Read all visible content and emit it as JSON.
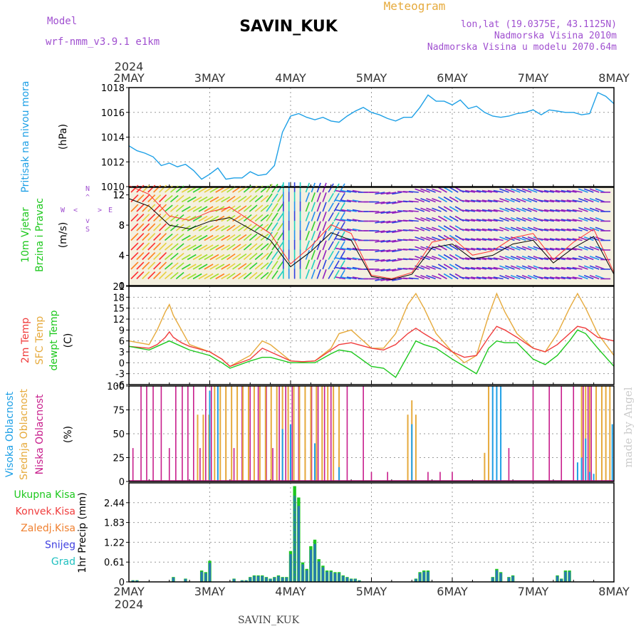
{
  "header": {
    "model_label": "Model",
    "model_name": "wrf-nmm_v3.9.1 e1km",
    "station": "SAVIN_KUK",
    "meteogram": "Meteogram",
    "lonlat": "lon,lat (19.0375E, 43.1125N)",
    "altitude": "Nadmorska Visina 2010m",
    "model_altitude": "Nadmorska Visina u modelu 2070.64m",
    "year_top": "2024",
    "year_bottom": "2024",
    "footer_station": "SAVIN_KUK",
    "credit": "made by Angel"
  },
  "colors": {
    "pressure": "#1ea0e6",
    "temp2m": "#f03c3c",
    "sfc": "#e6aa3c",
    "dew": "#1ec81e",
    "high_cloud": "#1ea0e6",
    "mid_cloud": "#e6aa3c",
    "low_cloud": "#c81e8c",
    "purple_text": "#a050d0"
  },
  "days": [
    "2MAY",
    "3MAY",
    "4MAY",
    "5MAY",
    "6MAY",
    "7MAY",
    "8MAY"
  ],
  "panels": {
    "pressure": {
      "title": "Pritisak na nivou mora",
      "unit": "(hPa)"
    },
    "wind": {
      "title1": "10m Vjetar",
      "title2": "Brzina i Pravac",
      "unit": "(m/s)",
      "compass": [
        "N",
        "W",
        "E",
        "S"
      ],
      "compass_glyphs": [
        "^",
        "<",
        ">",
        "v"
      ]
    },
    "temp": {
      "titles": [
        "2m Temp",
        "SFC Temp",
        "dewpt Temp"
      ],
      "unit": "(C)"
    },
    "cloud": {
      "titles": [
        "Visoka Oblacnost",
        "Srednja Oblacnost",
        "Niska Oblacnost"
      ],
      "unit": "(%)"
    },
    "precip": {
      "legend": [
        "Ukupna Kisa",
        "Konvek.Kisa",
        "Zaledj.Kisa",
        "Snijeg",
        "Grad"
      ],
      "unit": "1hr Precip (mm)"
    }
  },
  "chart_data": [
    {
      "type": "line",
      "name": "pressure",
      "ylim": [
        1010,
        1018
      ],
      "yticks": [
        1010,
        1012,
        1014,
        1016,
        1018
      ],
      "x": [
        0,
        0.1,
        0.2,
        0.3,
        0.4,
        0.5,
        0.6,
        0.7,
        0.8,
        0.9,
        1.0,
        1.1,
        1.2,
        1.3,
        1.4,
        1.5,
        1.6,
        1.7,
        1.8,
        1.9,
        2.0,
        2.1,
        2.2,
        2.3,
        2.4,
        2.5,
        2.6,
        2.7,
        2.8,
        2.9,
        3.0,
        3.1,
        3.2,
        3.3,
        3.4,
        3.5,
        3.6,
        3.7,
        3.8,
        3.9,
        4.0,
        4.1,
        4.2,
        4.3,
        4.4,
        4.5,
        4.6,
        4.7,
        4.8,
        4.9,
        5.0,
        5.1,
        5.2,
        5.3,
        5.4,
        5.5,
        5.6,
        5.7,
        5.8,
        5.9,
        6.0
      ],
      "values": [
        1013.3,
        1012.9,
        1012.7,
        1012.4,
        1011.7,
        1011.9,
        1011.6,
        1011.8,
        1011.3,
        1010.6,
        1011.0,
        1011.5,
        1010.6,
        1010.7,
        1010.7,
        1011.2,
        1010.9,
        1011.0,
        1011.7,
        1014.4,
        1015.7,
        1015.9,
        1015.6,
        1015.4,
        1015.6,
        1015.3,
        1015.2,
        1015.7,
        1016.1,
        1016.4,
        1016.0,
        1015.8,
        1015.5,
        1015.3,
        1015.6,
        1015.6,
        1016.4,
        1017.4,
        1016.9,
        1016.9,
        1016.6,
        1017.0,
        1016.3,
        1016.5,
        1016.0,
        1015.7,
        1015.6,
        1015.7,
        1015.9,
        1016.0,
        1016.2,
        1015.8,
        1016.2,
        1016.1,
        1016.0,
        1016.0,
        1015.8,
        1015.9,
        1017.6,
        1017.3,
        1016.7
      ]
    },
    {
      "type": "scatter",
      "name": "wind",
      "ylim": [
        0,
        13
      ],
      "yticks": [
        0,
        4,
        8,
        12
      ],
      "x": [
        0,
        0.25,
        0.5,
        0.75,
        1.0,
        1.25,
        1.5,
        1.75,
        2.0,
        2.25,
        2.5,
        2.75,
        3.0,
        3.25,
        3.5,
        3.75,
        4.0,
        4.25,
        4.5,
        4.75,
        5.0,
        5.25,
        5.5,
        5.75,
        6.0
      ],
      "speed": [
        11.5,
        10.5,
        8,
        7.5,
        8.5,
        9,
        7.5,
        6,
        2.5,
        4.5,
        7,
        6,
        1.2,
        0.8,
        1.5,
        5,
        5.5,
        3.5,
        4,
        5.5,
        6,
        3,
        5,
        6.5,
        1.5
      ],
      "direction": [
        225,
        225,
        230,
        240,
        240,
        235,
        230,
        215,
        180,
        200,
        210,
        100,
        90,
        80,
        95,
        110,
        120,
        100,
        100,
        110,
        110,
        100,
        100,
        110,
        90
      ]
    },
    {
      "type": "line",
      "name": "temperature",
      "ylim": [
        -6,
        21
      ],
      "yticks": [
        -6,
        -3,
        0,
        3,
        6,
        9,
        12,
        15,
        18,
        21
      ],
      "x": [
        0,
        0.25,
        0.35,
        0.45,
        0.5,
        0.55,
        0.65,
        0.75,
        1.0,
        1.15,
        1.25,
        1.5,
        1.65,
        1.75,
        2.0,
        2.15,
        2.3,
        2.5,
        2.6,
        2.75,
        3.0,
        3.15,
        3.3,
        3.45,
        3.55,
        3.65,
        3.8,
        4.0,
        4.15,
        4.3,
        4.45,
        4.55,
        4.65,
        4.8,
        5.0,
        5.15,
        5.3,
        5.45,
        5.55,
        5.65,
        5.8,
        6.0
      ],
      "series": [
        {
          "name": "2m Temp",
          "values": [
            4.5,
            4,
            5,
            7,
            8.5,
            7,
            5.5,
            4.5,
            3,
            1,
            -1,
            1,
            4,
            3,
            0.5,
            0.3,
            0.5,
            3.5,
            5,
            5.5,
            4,
            3.5,
            5,
            8,
            9.5,
            8,
            6,
            3,
            1.5,
            2,
            7,
            10,
            9,
            7,
            4,
            3,
            5,
            8,
            10,
            9.5,
            7,
            6
          ]
        },
        {
          "name": "SFC Temp",
          "values": [
            6,
            5,
            9,
            14,
            16,
            13,
            9,
            5,
            3,
            1,
            -1,
            2,
            6,
            5,
            0.5,
            0.3,
            0.5,
            4,
            8,
            9,
            4,
            4,
            8,
            16,
            19,
            15,
            8,
            3,
            0,
            2,
            13,
            19,
            14,
            8,
            4,
            3,
            8,
            15,
            19,
            15,
            8,
            2
          ]
        },
        {
          "name": "dewpt Temp",
          "values": [
            4.5,
            3.5,
            4.5,
            5.5,
            6,
            5.5,
            4.5,
            3.5,
            2,
            0,
            -1.5,
            0.5,
            1.5,
            1.5,
            0,
            0,
            0,
            2.5,
            3.5,
            3,
            -1,
            -1.5,
            -4,
            2,
            6,
            5,
            4,
            1,
            -1,
            -3,
            4,
            6,
            5.5,
            5.5,
            1,
            -0.5,
            2,
            6,
            9,
            8,
            4,
            -1
          ]
        }
      ]
    },
    {
      "type": "bar",
      "name": "cloud",
      "ylim": [
        0,
        100
      ],
      "yticks": [
        0,
        25,
        50,
        75,
        100
      ]
    },
    {
      "type": "bar",
      "name": "precipitation",
      "ylim": [
        0,
        3.05
      ],
      "yticks": [
        0,
        0.61,
        1.22,
        1.83,
        2.44
      ],
      "x": [
        0.05,
        0.1,
        0.55,
        0.7,
        0.9,
        0.95,
        1.0,
        1.3,
        1.4,
        1.45,
        1.5,
        1.55,
        1.6,
        1.65,
        1.7,
        1.75,
        1.8,
        1.85,
        1.9,
        1.95,
        2.0,
        2.05,
        2.1,
        2.15,
        2.2,
        2.25,
        2.3,
        2.35,
        2.4,
        2.45,
        2.5,
        2.55,
        2.6,
        2.65,
        2.7,
        2.75,
        2.8,
        2.85,
        3.55,
        3.6,
        3.65,
        3.7,
        4.5,
        4.55,
        4.6,
        4.7,
        4.75,
        5.3,
        5.35,
        5.4,
        5.45
      ],
      "series": [
        {
          "name": "Ukupna Kisa",
          "values": [
            0.05,
            0.05,
            0.15,
            0.1,
            0.35,
            0.3,
            0.65,
            0.1,
            0.05,
            0.05,
            0.15,
            0.2,
            0.2,
            0.2,
            0.15,
            0.1,
            0.15,
            0.2,
            0.15,
            0.15,
            0.95,
            2.95,
            2.6,
            0.6,
            0.4,
            1.1,
            1.3,
            0.7,
            0.5,
            0.35,
            0.35,
            0.3,
            0.3,
            0.2,
            0.15,
            0.1,
            0.1,
            0.05,
            0.1,
            0.3,
            0.35,
            0.35,
            0.15,
            0.4,
            0.3,
            0.15,
            0.2,
            0.2,
            0.1,
            0.35,
            0.35
          ]
        },
        {
          "name": "Konvek.Kisa",
          "values": [
            0.05,
            0.05,
            0.15,
            0.1,
            0.35,
            0.3,
            0.65,
            0.1,
            0.05,
            0.05,
            0.15,
            0.2,
            0.2,
            0.2,
            0.15,
            0.1,
            0.15,
            0.2,
            0.15,
            0.15,
            0.95,
            2.95,
            2.6,
            0.6,
            0.4,
            1.1,
            1.3,
            0.7,
            0.5,
            0.35,
            0.35,
            0.3,
            0.3,
            0.2,
            0.15,
            0.1,
            0.1,
            0.05,
            0.1,
            0.3,
            0.35,
            0.35,
            0.15,
            0.4,
            0.3,
            0.15,
            0.2,
            0.2,
            0.1,
            0.35,
            0.35
          ]
        }
      ]
    }
  ]
}
